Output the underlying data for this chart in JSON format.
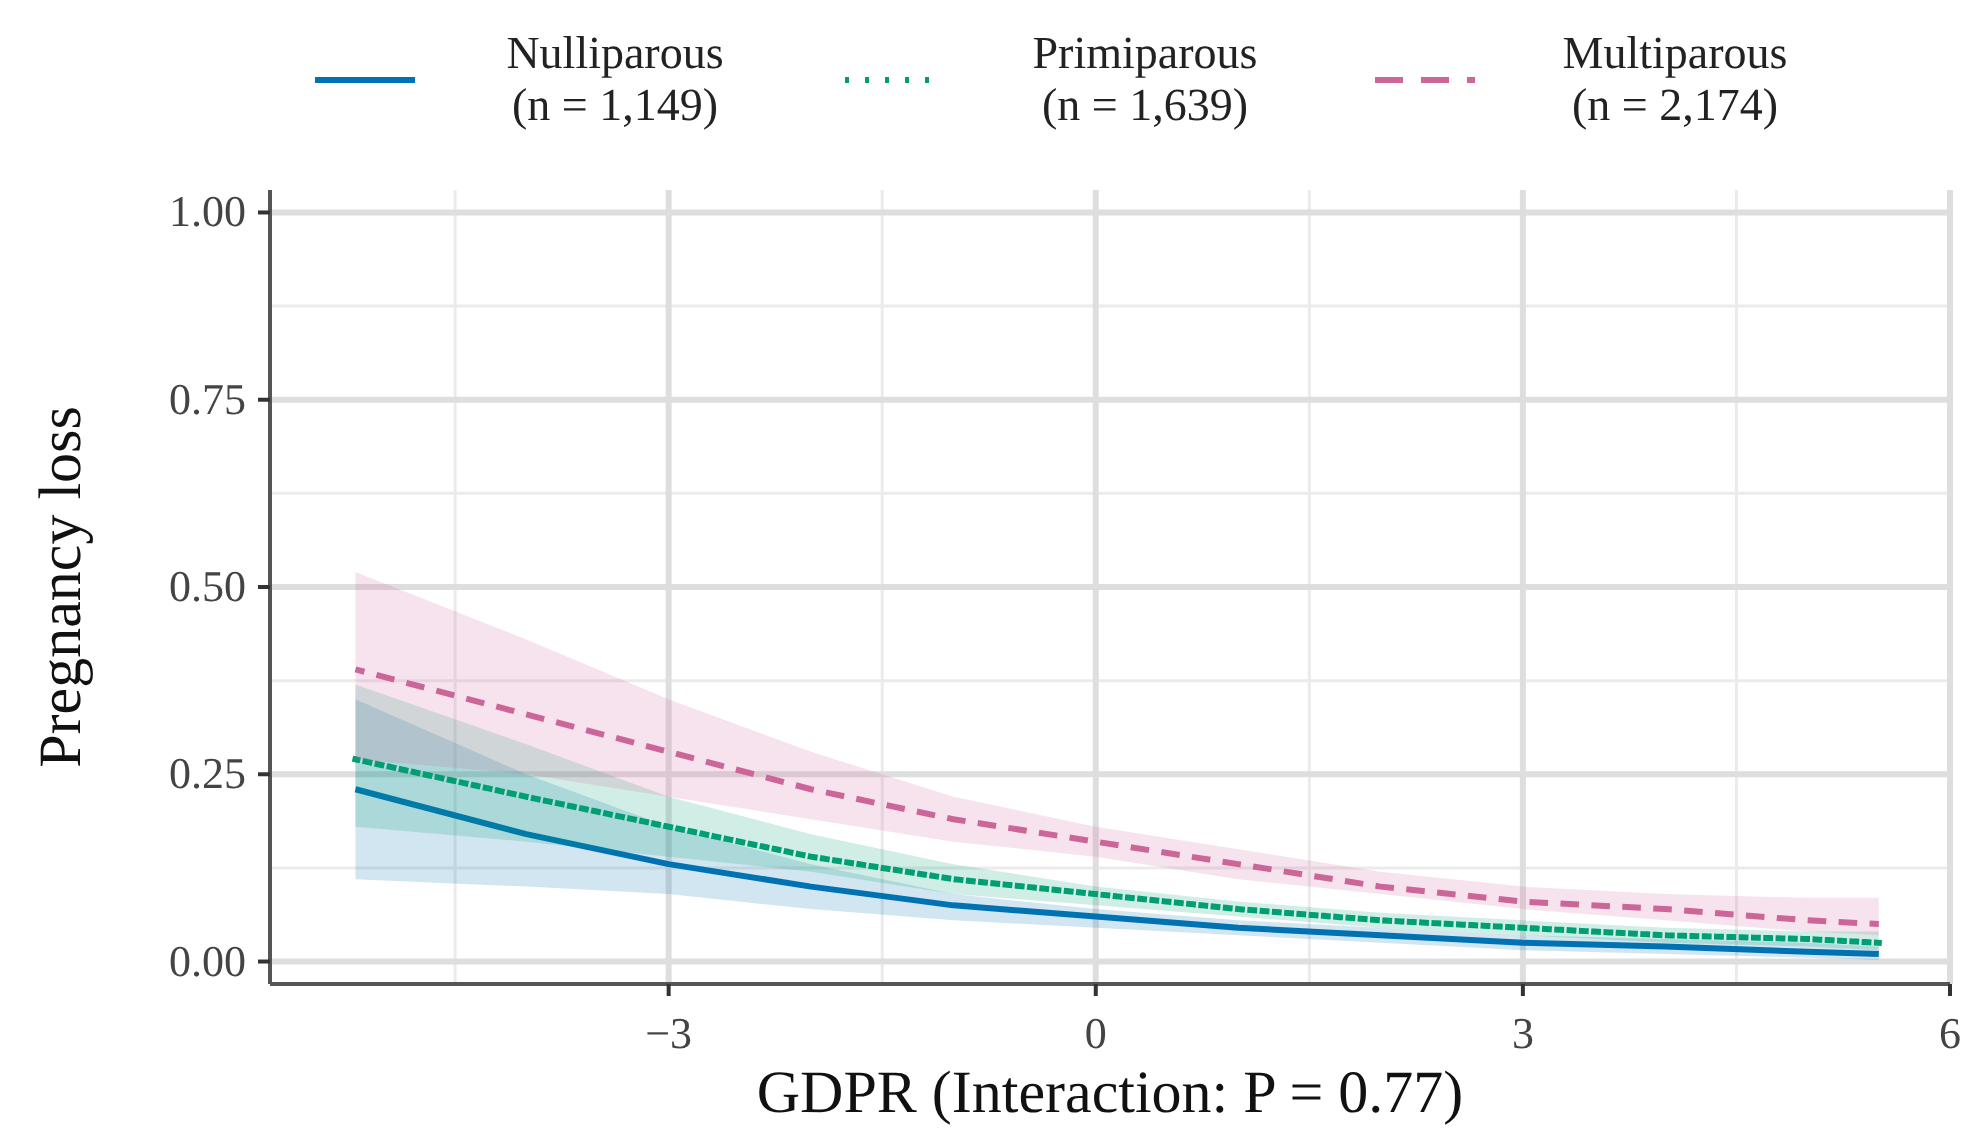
{
  "chart_data": {
    "type": "line",
    "xlabel": "GDPR (Interaction: P = 0.77)",
    "ylabel": "Pregnancy loss",
    "xlim": [
      -5.8,
      6
    ],
    "xticks": [
      -3,
      0,
      3,
      6
    ],
    "ylim": [
      -0.03,
      1.03
    ],
    "yticks": [
      {
        "value": 0,
        "label": "0.00"
      },
      {
        "value": 0.25,
        "label": "0.25"
      },
      {
        "value": 0.5,
        "label": "0.50"
      },
      {
        "value": 0.75,
        "label": "0.75"
      },
      {
        "value": 1,
        "label": "1.00"
      }
    ],
    "grid": true,
    "legend": "top",
    "x": [
      -5.2,
      -4,
      -3,
      -2,
      -1,
      0,
      1,
      2,
      3,
      4,
      5,
      5.5
    ],
    "series": [
      {
        "name": "Nulliparous (n = 1,149)",
        "color": "#0072b2",
        "line_style": "solid",
        "values": [
          0.23,
          0.17,
          0.13,
          0.1,
          0.075,
          0.06,
          0.045,
          0.035,
          0.025,
          0.02,
          0.013,
          0.01
        ],
        "lower": [
          0.11,
          0.1,
          0.09,
          0.07,
          0.055,
          0.045,
          0.035,
          0.025,
          0.015,
          0.01,
          0.005,
          0.002
        ],
        "upper": [
          0.35,
          0.25,
          0.18,
          0.13,
          0.09,
          0.07,
          0.055,
          0.045,
          0.035,
          0.03,
          0.025,
          0.02
        ]
      },
      {
        "name": "Primiparous (n = 1,639)",
        "color": "#009e73",
        "line_style": "dotted",
        "values": [
          0.27,
          0.22,
          0.18,
          0.14,
          0.11,
          0.09,
          0.07,
          0.055,
          0.045,
          0.035,
          0.03,
          0.025
        ],
        "lower": [
          0.18,
          0.16,
          0.14,
          0.12,
          0.09,
          0.075,
          0.06,
          0.045,
          0.035,
          0.025,
          0.02,
          0.015
        ],
        "upper": [
          0.37,
          0.29,
          0.22,
          0.17,
          0.13,
          0.1,
          0.08,
          0.065,
          0.055,
          0.045,
          0.04,
          0.04
        ]
      },
      {
        "name": "Multiparous (n = 2,174)",
        "color": "#cc6699",
        "line_style": "dashed",
        "values": [
          0.39,
          0.33,
          0.28,
          0.23,
          0.19,
          0.16,
          0.13,
          0.1,
          0.08,
          0.07,
          0.055,
          0.05
        ],
        "lower": [
          0.27,
          0.25,
          0.22,
          0.19,
          0.16,
          0.14,
          0.11,
          0.09,
          0.07,
          0.055,
          0.04,
          0.035
        ],
        "upper": [
          0.52,
          0.43,
          0.35,
          0.28,
          0.22,
          0.18,
          0.15,
          0.12,
          0.1,
          0.09,
          0.085,
          0.085
        ]
      }
    ]
  }
}
